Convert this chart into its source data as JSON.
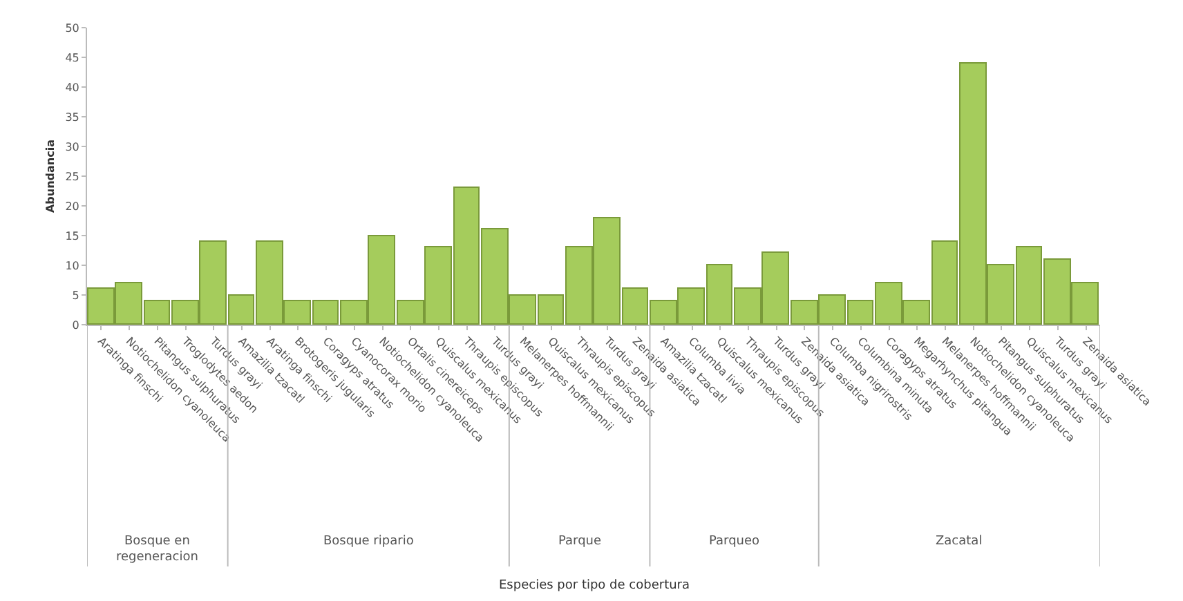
{
  "chart_data": {
    "type": "bar",
    "ylabel": "Abundancia",
    "categories": [
      "Aratinga finschi",
      "Notiochelidon cyanoleuca",
      "Pitangus sulphuratus",
      "Troglodytes aedon",
      "Turdus grayi",
      "Amazilia tzacatl",
      "Aratinga finschi",
      "Brotogeris jugularis",
      "Coragyps atratus",
      "Cyanocorax morio",
      "Notiochelidon cyanoleuca",
      "Ortalis cinereiceps",
      "Quiscalus mexicanus",
      "Thraupis episcopus",
      "Turdus grayi",
      "Melanerpes hoffmannii",
      "Quiscalus mexicanus",
      "Thraupis episcopus",
      "Turdus grayi",
      "Zenaida asiatica",
      "Amazilia tzacatl",
      "Columba livia",
      "Quiscalus mexicanus",
      "Thraupis episcopus",
      "Turdus grayi",
      "Zenaida asiatica",
      "Columba nigrirostris",
      "Columbina minuta",
      "Coragyps atratus",
      "Megarhynchus pitangua",
      "Melanerpes hoffmannii",
      "Notiochelidon cyanoleuca",
      "Pitangus sulphuratus",
      "Quiscalus mexicanus",
      "Turdus grayi",
      "Zenaida asiatica"
    ],
    "series": [
      {
        "color": "#a5cc5c",
        "values": [
          6,
          7,
          4,
          4,
          14,
          null,
          null,
          null,
          null,
          null,
          null,
          null,
          null,
          null,
          null,
          null,
          null,
          null,
          null,
          null,
          null,
          null,
          null,
          null,
          null,
          null,
          null,
          null,
          null,
          null,
          null,
          null,
          null,
          null,
          null,
          null
        ]
      },
      {
        "color": "#a5cc5c",
        "values": [
          null,
          null,
          null,
          null,
          null,
          5,
          14,
          4,
          4,
          4,
          15,
          4,
          13,
          23,
          16,
          null,
          null,
          null,
          null,
          null,
          null,
          null,
          null,
          null,
          null,
          null,
          null,
          null,
          null,
          null,
          null,
          null,
          null,
          null,
          null,
          null
        ]
      },
      {
        "color": "#a5cc5c",
        "values": [
          null,
          null,
          null,
          null,
          null,
          null,
          null,
          null,
          null,
          null,
          null,
          null,
          null,
          null,
          null,
          5,
          5,
          13,
          18,
          6,
          null,
          null,
          null,
          null,
          null,
          null,
          null,
          null,
          null,
          null,
          null,
          null,
          null,
          null,
          null,
          null
        ]
      },
      {
        "color": "#a5cc5c",
        "values": [
          null,
          null,
          null,
          null,
          null,
          null,
          null,
          null,
          null,
          null,
          null,
          null,
          null,
          null,
          null,
          null,
          null,
          null,
          null,
          null,
          4,
          6,
          10,
          6,
          12,
          4,
          null,
          null,
          null,
          null,
          null,
          null,
          null,
          null,
          null,
          null
        ]
      },
      {
        "color": "#a5cc5c",
        "values": [
          null,
          null,
          null,
          null,
          null,
          null,
          null,
          null,
          null,
          null,
          null,
          null,
          null,
          null,
          null,
          null,
          null,
          null,
          null,
          null,
          null,
          null,
          null,
          null,
          null,
          null,
          5,
          4,
          7,
          4,
          14,
          44,
          10,
          13,
          11,
          7
        ]
      }
    ],
    "ylim": [
      0,
      50
    ],
    "yticks": [
      0,
      5,
      10,
      15,
      20,
      25,
      30,
      35,
      40,
      45,
      50
    ],
    "annotations": [
      "Bosque en regeneracion",
      "Bosque ripario",
      "Parque",
      "Parqueo",
      "Zacatal",
      "Especies por tipo de cobertura"
    ]
  }
}
